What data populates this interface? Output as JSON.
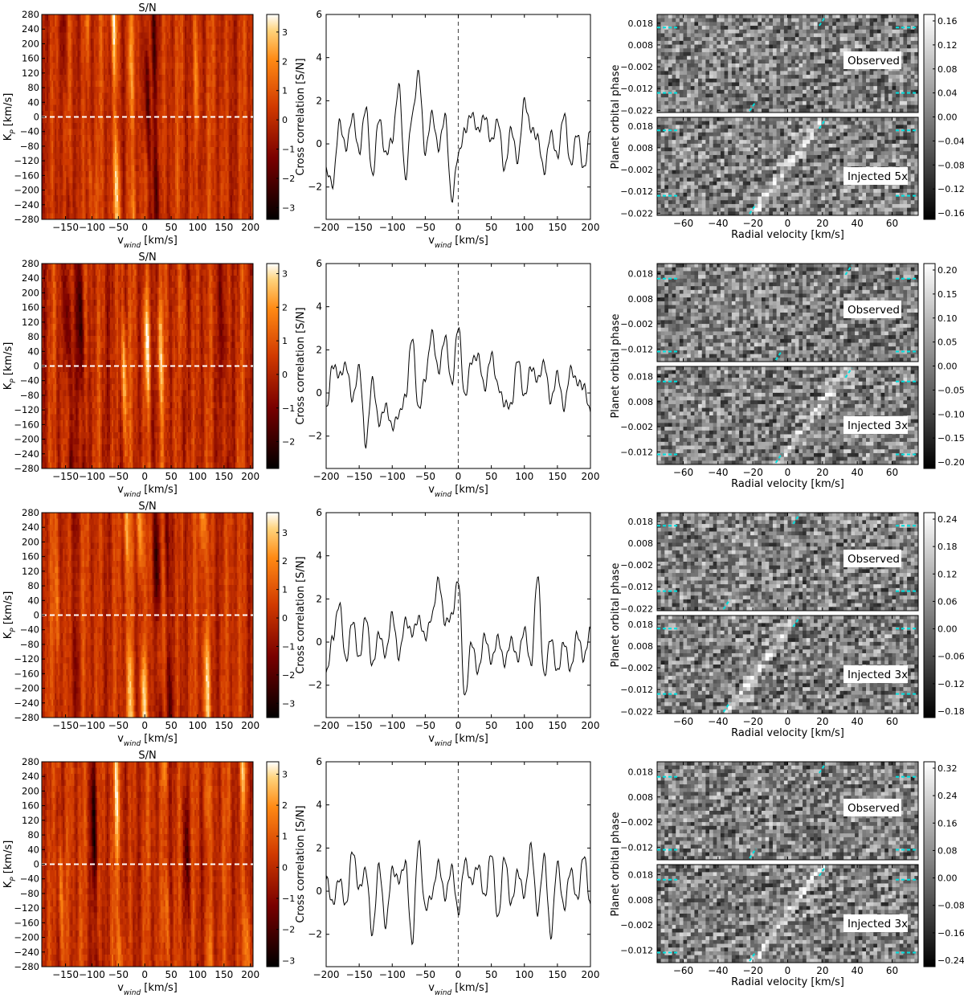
{
  "colors": {
    "line": "#000000",
    "sn_dashed": "#ffffff",
    "zero_dashed": "#555555",
    "trail_marker": "#00e0e0",
    "label_box": "#ffffff"
  },
  "chart_data": [
    {
      "row": 1,
      "sn_map": {
        "type": "heatmap",
        "title": "S/N",
        "xlabel": "v_wind [km/s]",
        "ylabel": "K_P [km/s]",
        "x_ticks": [
          "−150",
          "−100",
          "−50",
          "0",
          "50",
          "100",
          "150",
          "200"
        ],
        "y_ticks": [
          "280",
          "240",
          "200",
          "160",
          "120",
          "80",
          "40",
          "0",
          "−40",
          "−80",
          "−120",
          "−160",
          "−200",
          "−240",
          "−280"
        ],
        "cbar_ticks": [
          "3",
          "2",
          "1",
          "0",
          "−1",
          "−2",
          "−3"
        ],
        "cmap": "gist_heat",
        "xlim": [
          -195,
          205
        ],
        "ylim": [
          -280,
          280
        ],
        "vlim": [
          -3.4,
          3.6
        ],
        "streaks": [
          {
            "x": -55,
            "v": 3.3
          },
          {
            "x": -25,
            "v": 1.8
          },
          {
            "x": -105,
            "v": 1.4
          },
          {
            "x": 100,
            "v": 1.5
          },
          {
            "x": 5,
            "v": -3.0
          },
          {
            "x": 20,
            "v": -2.0
          },
          {
            "x": -150,
            "v": -1.5
          }
        ],
        "dashed_line_kp": 0
      },
      "ccf": {
        "type": "line",
        "xlabel": "v_wind [km/s]",
        "ylabel": "Cross correlation [S/N]",
        "x_ticks": [
          "−200",
          "−150",
          "−100",
          "−50",
          "0",
          "50",
          "100",
          "150",
          "200"
        ],
        "y_ticks": [
          "6",
          "4",
          "2",
          "0",
          "−2"
        ],
        "xlim": [
          -200,
          200
        ],
        "ylim": [
          -3.5,
          6
        ],
        "x": [
          -200,
          -190,
          -180,
          -170,
          -160,
          -150,
          -140,
          -130,
          -120,
          -110,
          -100,
          -90,
          -80,
          -70,
          -60,
          -50,
          -40,
          -30,
          -20,
          -10,
          0,
          10,
          20,
          30,
          40,
          50,
          60,
          70,
          80,
          90,
          100,
          110,
          120,
          130,
          140,
          150,
          160,
          170,
          180,
          190,
          200
        ],
        "y": [
          -1.2,
          -1.9,
          1.0,
          -0.2,
          1.3,
          -0.4,
          1.7,
          -1.5,
          1.2,
          -0.5,
          0.2,
          2.7,
          -1.6,
          1.3,
          3.3,
          -0.4,
          1.4,
          -0.2,
          1.3,
          -2.6,
          -0.5,
          0.6,
          1.4,
          0.6,
          1.3,
          0.1,
          1.1,
          -1.2,
          0.7,
          -0.8,
          2.0,
          0.7,
          0.3,
          -1.3,
          0.5,
          -0.6,
          1.4,
          -1.0,
          0.5,
          -1.2,
          0.6
        ],
        "vline_x": 0
      },
      "trail": {
        "type": "heatmap",
        "xlabel": "Radial velocity [km/s]",
        "ylabel": "Planet orbital phase",
        "x_ticks": [
          "−60",
          "−40",
          "−20",
          "0",
          "20",
          "40",
          "60"
        ],
        "y_ticks": [
          "0.018",
          "0.008",
          "−0.002",
          "−0.012",
          "−0.022"
        ],
        "xlim": [
          -75,
          75
        ],
        "ylim": [
          -0.023,
          0.022
        ],
        "cbar_ticks": [
          "0.16",
          "0.12",
          "0.08",
          "0.04",
          "0.00",
          "−0.04",
          "−0.08",
          "−0.12",
          "−0.16"
        ],
        "panels": [
          {
            "label": "Observed",
            "track": 0
          },
          {
            "label": "Injected 5x",
            "track": 1
          }
        ],
        "track_v": [
          -20,
          20
        ],
        "marker_phases": [
          0.016,
          -0.014
        ]
      }
    },
    {
      "row": 2,
      "sn_map": {
        "type": "heatmap",
        "title": "S/N",
        "xlabel": "v_wind [km/s]",
        "ylabel": "K_P [km/s]",
        "x_ticks": [
          "−150",
          "−100",
          "−50",
          "0",
          "50",
          "100",
          "150",
          "200"
        ],
        "y_ticks": [
          "280",
          "240",
          "200",
          "160",
          "120",
          "80",
          "40",
          "0",
          "−40",
          "−80",
          "−120",
          "−160",
          "−200",
          "−240",
          "−280"
        ],
        "cbar_ticks": [
          "3",
          "2",
          "1",
          "0",
          "−1",
          "−2"
        ],
        "cmap": "gist_heat",
        "xlim": [
          -195,
          205
        ],
        "ylim": [
          -280,
          280
        ],
        "vlim": [
          -2.8,
          3.3
        ],
        "streaks": [
          {
            "x": 5,
            "v": 3.0
          },
          {
            "x": -40,
            "v": 2.6
          },
          {
            "x": 30,
            "v": 2.2
          },
          {
            "x": 75,
            "v": 1.2
          },
          {
            "x": -120,
            "v": -2.5
          },
          {
            "x": -145,
            "v": -2.2
          },
          {
            "x": 150,
            "v": -1.2
          }
        ],
        "dashed_line_kp": 0
      },
      "ccf": {
        "type": "line",
        "xlabel": "v_wind [km/s]",
        "ylabel": "Cross correlation [S/N]",
        "x_ticks": [
          "−200",
          "−150",
          "−100",
          "−50",
          "0",
          "50",
          "100",
          "150",
          "200"
        ],
        "y_ticks": [
          "6",
          "4",
          "2",
          "0",
          "−2"
        ],
        "xlim": [
          -200,
          200
        ],
        "ylim": [
          -3.5,
          6
        ],
        "x": [
          -200,
          -190,
          -180,
          -170,
          -160,
          -150,
          -140,
          -130,
          -120,
          -110,
          -100,
          -90,
          -80,
          -70,
          -60,
          -50,
          -40,
          -30,
          -20,
          -10,
          0,
          10,
          20,
          30,
          40,
          50,
          60,
          70,
          80,
          90,
          100,
          110,
          120,
          130,
          140,
          150,
          160,
          170,
          180,
          190,
          200
        ],
        "y": [
          -0.8,
          1.3,
          0.8,
          1.3,
          -0.3,
          1.2,
          -2.4,
          0.6,
          -1.4,
          -0.6,
          -1.6,
          -1.0,
          -0.2,
          2.6,
          -0.8,
          0.7,
          2.8,
          1.0,
          2.6,
          0.4,
          3.1,
          -0.2,
          1.5,
          1.7,
          0.2,
          1.8,
          0.3,
          -0.5,
          -0.6,
          1.6,
          -0.2,
          1.2,
          0.6,
          1.4,
          -0.4,
          0.9,
          -0.7,
          1.1,
          0.5,
          0.3,
          -0.9
        ],
        "vline_x": 0
      },
      "trail": {
        "type": "heatmap",
        "xlabel": "Radial velocity [km/s]",
        "ylabel": "Planet orbital phase",
        "x_ticks": [
          "−60",
          "−40",
          "−20",
          "0",
          "20",
          "40",
          "60"
        ],
        "y_ticks": [
          "0.018",
          "0.008",
          "−0.002",
          "−0.012"
        ],
        "xlim": [
          -75,
          75
        ],
        "ylim": [
          -0.017,
          0.022
        ],
        "cbar_ticks": [
          "0.20",
          "0.15",
          "0.10",
          "0.05",
          "0.00",
          "−0.05",
          "−0.10",
          "−0.15",
          "−0.20"
        ],
        "panels": [
          {
            "label": "Observed",
            "track": 0
          },
          {
            "label": "Injected 3x",
            "track": 1
          }
        ],
        "track_v": [
          -5,
          35
        ],
        "marker_phases": [
          0.016,
          -0.013
        ]
      }
    },
    {
      "row": 3,
      "sn_map": {
        "type": "heatmap",
        "title": "S/N",
        "xlabel": "v_wind [km/s]",
        "ylabel": "K_P [km/s]",
        "x_ticks": [
          "−150",
          "−100",
          "−50",
          "0",
          "50",
          "100",
          "150",
          "200"
        ],
        "y_ticks": [
          "280",
          "240",
          "200",
          "160",
          "120",
          "80",
          "40",
          "0",
          "−40",
          "−80",
          "−120",
          "−160",
          "−200",
          "−240",
          "−280"
        ],
        "cbar_ticks": [
          "3",
          "2",
          "1",
          "0",
          "−1",
          "−2",
          "−3"
        ],
        "cmap": "gist_heat",
        "xlim": [
          -195,
          205
        ],
        "ylim": [
          -280,
          280
        ],
        "vlim": [
          -3.5,
          3.7
        ],
        "streaks": [
          {
            "x": -5,
            "v": 3.4
          },
          {
            "x": -30,
            "v": 2.8
          },
          {
            "x": 115,
            "v": 3.1
          },
          {
            "x": -165,
            "v": 1.6
          },
          {
            "x": 25,
            "v": -3.0
          },
          {
            "x": 45,
            "v": -2.0
          },
          {
            "x": -130,
            "v": -1.4
          }
        ],
        "dashed_line_kp": 0
      },
      "ccf": {
        "type": "line",
        "xlabel": "v_wind [km/s]",
        "ylabel": "Cross correlation [S/N]",
        "x_ticks": [
          "−200",
          "−150",
          "−100",
          "−50",
          "0",
          "50",
          "100",
          "150",
          "200"
        ],
        "y_ticks": [
          "6",
          "4",
          "2",
          "0",
          "−2"
        ],
        "xlim": [
          -200,
          200
        ],
        "ylim": [
          -3.5,
          6
        ],
        "x": [
          -200,
          -190,
          -180,
          -170,
          -160,
          -150,
          -140,
          -130,
          -120,
          -110,
          -100,
          -90,
          -80,
          -70,
          -60,
          -50,
          -40,
          -30,
          -20,
          -10,
          0,
          10,
          20,
          30,
          40,
          50,
          60,
          70,
          80,
          90,
          100,
          110,
          120,
          130,
          140,
          150,
          160,
          170,
          180,
          190,
          200
        ],
        "y": [
          -1.5,
          0.2,
          1.8,
          -0.9,
          1.0,
          -0.8,
          1.2,
          -1.1,
          0.4,
          -0.6,
          1.3,
          -0.7,
          1.0,
          0.4,
          1.1,
          0.2,
          1.2,
          2.9,
          0.9,
          1.2,
          2.9,
          -2.6,
          0.0,
          -1.4,
          0.3,
          -0.9,
          0.2,
          -1.0,
          0.1,
          -0.8,
          0.6,
          -1.1,
          3.1,
          -1.6,
          0.2,
          -1.4,
          0.0,
          -1.3,
          0.4,
          -0.8,
          0.6
        ],
        "vline_x": 0
      },
      "trail": {
        "type": "heatmap",
        "xlabel": "Radial velocity [km/s]",
        "ylabel": "Planet orbital phase",
        "x_ticks": [
          "−60",
          "−40",
          "−20",
          "0",
          "20",
          "40",
          "60"
        ],
        "y_ticks": [
          "0.018",
          "0.008",
          "−0.002",
          "−0.012",
          "−0.022"
        ],
        "xlim": [
          -75,
          75
        ],
        "ylim": [
          -0.023,
          0.022
        ],
        "cbar_ticks": [
          "0.24",
          "0.18",
          "0.12",
          "0.06",
          "0.00",
          "−0.06",
          "−0.12",
          "−0.18"
        ],
        "panels": [
          {
            "label": "Observed",
            "track": 0
          },
          {
            "label": "Injected 3x",
            "track": 1
          }
        ],
        "track_v": [
          -35,
          5
        ],
        "marker_phases": [
          0.016,
          -0.014
        ]
      }
    },
    {
      "row": 4,
      "sn_map": {
        "type": "heatmap",
        "title": "S/N",
        "xlabel": "v_wind [km/s]",
        "ylabel": "K_P [km/s]",
        "x_ticks": [
          "−150",
          "−100",
          "−50",
          "0",
          "50",
          "100",
          "150",
          "200"
        ],
        "y_ticks": [
          "280",
          "240",
          "200",
          "160",
          "120",
          "80",
          "40",
          "0",
          "−40",
          "−80",
          "−120",
          "−160",
          "−200",
          "−240",
          "−280"
        ],
        "cbar_ticks": [
          "3",
          "2",
          "1",
          "0",
          "−1",
          "−2",
          "−3"
        ],
        "cmap": "gist_heat",
        "xlim": [
          -195,
          205
        ],
        "ylim": [
          -280,
          280
        ],
        "vlim": [
          -3.2,
          3.4
        ],
        "streaks": [
          {
            "x": -50,
            "v": 2.4
          },
          {
            "x": 190,
            "v": 2.6
          },
          {
            "x": -160,
            "v": 2.0
          },
          {
            "x": 40,
            "v": 1.8
          },
          {
            "x": 120,
            "v": 1.6
          },
          {
            "x": -95,
            "v": -2.6
          },
          {
            "x": 80,
            "v": -2.2
          }
        ],
        "dashed_line_kp": 0
      },
      "ccf": {
        "type": "line",
        "xlabel": "v_wind [km/s]",
        "ylabel": "Cross correlation [S/N]",
        "x_ticks": [
          "−200",
          "−150",
          "−100",
          "−50",
          "0",
          "50",
          "100",
          "150",
          "200"
        ],
        "y_ticks": [
          "6",
          "4",
          "2",
          "0",
          "−2"
        ],
        "xlim": [
          -200,
          200
        ],
        "ylim": [
          -3.5,
          6
        ],
        "x": [
          -200,
          -190,
          -180,
          -170,
          -160,
          -150,
          -140,
          -130,
          -120,
          -110,
          -100,
          -90,
          -80,
          -70,
          -60,
          -50,
          -40,
          -30,
          -20,
          -10,
          0,
          10,
          20,
          30,
          40,
          50,
          60,
          70,
          80,
          90,
          100,
          110,
          120,
          130,
          140,
          150,
          160,
          170,
          180,
          190,
          200
        ],
        "y": [
          0.6,
          -0.6,
          0.6,
          -0.7,
          1.9,
          0.1,
          1.0,
          -2.0,
          1.2,
          -1.6,
          1.0,
          0.5,
          1.3,
          -2.4,
          2.3,
          -0.8,
          -0.2,
          1.3,
          -0.3,
          1.1,
          -1.0,
          1.4,
          0.4,
          1.2,
          -0.3,
          1.8,
          -1.3,
          1.6,
          -0.6,
          0.9,
          -0.2,
          2.1,
          -1.0,
          1.6,
          -2.1,
          1.3,
          -0.8,
          1.0,
          -0.4,
          1.7,
          -0.6
        ],
        "vline_x": 0
      },
      "trail": {
        "type": "heatmap",
        "xlabel": "Radial velocity [km/s]",
        "ylabel": "Planet orbital phase",
        "x_ticks": [
          "−60",
          "−40",
          "−20",
          "0",
          "20",
          "40",
          "60"
        ],
        "y_ticks": [
          "0.018",
          "0.008",
          "−0.002",
          "−0.012"
        ],
        "xlim": [
          -75,
          75
        ],
        "ylim": [
          -0.017,
          0.022
        ],
        "cbar_ticks": [
          "0.32",
          "0.24",
          "0.16",
          "0.08",
          "0.00",
          "−0.08",
          "−0.16",
          "−0.24"
        ],
        "panels": [
          {
            "label": "Observed",
            "track": 0
          },
          {
            "label": "Injected 3x",
            "track": 1
          }
        ],
        "track_v": [
          -20,
          20
        ],
        "marker_phases": [
          0.016,
          -0.013
        ]
      }
    }
  ]
}
